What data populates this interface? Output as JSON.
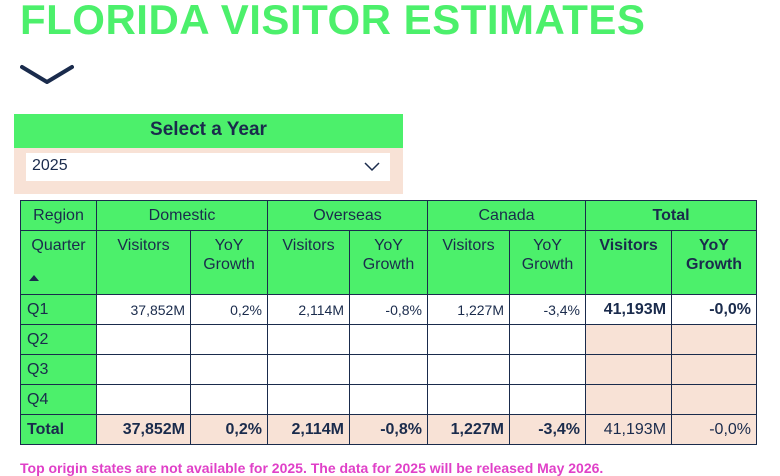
{
  "page": {
    "title": "FLORIDA VISITOR ESTIMATES",
    "collapse_icon": "chevron-down-icon",
    "notice": "Top origin states are not available for 2025. The data for 2025 will be released May 2026."
  },
  "colors": {
    "accent_green": "#4cf06b",
    "navy": "#1a2b4c",
    "peach": "#f8e2d6",
    "notice_magenta": "#e040c8"
  },
  "year_selector": {
    "label": "Select a Year",
    "selected": "2025",
    "dropdown_icon": "chevron-down-icon"
  },
  "table": {
    "region_label": "Region",
    "quarter_label": "Quarter",
    "sort_icon": "sort-ascending-icon",
    "groups": [
      "Domestic",
      "Overseas",
      "Canada",
      "Total"
    ],
    "sub_headers": {
      "visitors": "Visitors",
      "growth_line1": "YoY",
      "growth_line2": "Growth"
    },
    "rows": [
      {
        "label": "Q1",
        "domestic_visitors": "37,852M",
        "domestic_growth": "0,2%",
        "overseas_visitors": "2,114M",
        "overseas_growth": "-0,8%",
        "canada_visitors": "1,227M",
        "canada_growth": "-3,4%",
        "total_visitors": "41,193M",
        "total_growth": "-0,0%"
      },
      {
        "label": "Q2",
        "domestic_visitors": "",
        "domestic_growth": "",
        "overseas_visitors": "",
        "overseas_growth": "",
        "canada_visitors": "",
        "canada_growth": "",
        "total_visitors": "",
        "total_growth": ""
      },
      {
        "label": "Q3",
        "domestic_visitors": "",
        "domestic_growth": "",
        "overseas_visitors": "",
        "overseas_growth": "",
        "canada_visitors": "",
        "canada_growth": "",
        "total_visitors": "",
        "total_growth": ""
      },
      {
        "label": "Q4",
        "domestic_visitors": "",
        "domestic_growth": "",
        "overseas_visitors": "",
        "overseas_growth": "",
        "canada_visitors": "",
        "canada_growth": "",
        "total_visitors": "",
        "total_growth": ""
      }
    ],
    "totals": {
      "label": "Total",
      "domestic_visitors": "37,852M",
      "domestic_growth": "0,2%",
      "overseas_visitors": "2,114M",
      "overseas_growth": "-0,8%",
      "canada_visitors": "1,227M",
      "canada_growth": "-3,4%",
      "total_visitors": "41,193M",
      "total_growth": "-0,0%"
    }
  }
}
